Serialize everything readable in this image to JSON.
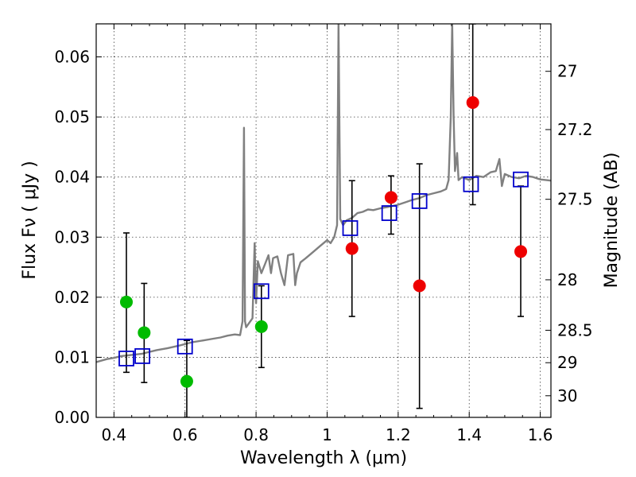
{
  "chart_data": {
    "type": "scatter",
    "xlabel": "Wavelength  λ (μm)",
    "ylabel": "Flux  Fν  ( μJy )",
    "ylabel_right": "Magnitude (AB)",
    "xlim": [
      0.35,
      1.63
    ],
    "ylim": [
      0.0,
      0.0655
    ],
    "x_ticks": [
      0.4,
      0.6,
      0.8,
      1.0,
      1.2,
      1.4,
      1.6
    ],
    "x_tick_labels": [
      "0.4",
      "0.6",
      "0.8",
      "1",
      "1.2",
      "1.4",
      "1.6"
    ],
    "y_ticks": [
      0.0,
      0.01,
      0.02,
      0.03,
      0.04,
      0.05,
      0.06
    ],
    "y_tick_labels": [
      "0.00",
      "0.01",
      "0.02",
      "0.03",
      "0.04",
      "0.05",
      "0.06"
    ],
    "right_ticks": [
      {
        "label": "27",
        "flux": 0.0576
      },
      {
        "label": "27.2",
        "flux": 0.0479
      },
      {
        "label": "27.5",
        "flux": 0.0363
      },
      {
        "label": "28",
        "flux": 0.0229
      },
      {
        "label": "28.5",
        "flux": 0.0145
      },
      {
        "label": "29",
        "flux": 0.0091
      },
      {
        "label": "30",
        "flux": 0.0036
      }
    ],
    "grid": true,
    "colors": {
      "sed": "#808080",
      "green": "#00bb00",
      "red": "#ee0000",
      "model": "#0000cc",
      "errorbar": "#000000"
    },
    "series": [
      {
        "name": "model SED",
        "style": "line",
        "color": "#808080",
        "points": [
          [
            0.35,
            0.0092
          ],
          [
            0.38,
            0.0097
          ],
          [
            0.4,
            0.0099
          ],
          [
            0.42,
            0.0102
          ],
          [
            0.45,
            0.0104
          ],
          [
            0.48,
            0.0106
          ],
          [
            0.5,
            0.0109
          ],
          [
            0.52,
            0.0112
          ],
          [
            0.55,
            0.0115
          ],
          [
            0.58,
            0.0119
          ],
          [
            0.6,
            0.0122
          ],
          [
            0.62,
            0.0125
          ],
          [
            0.65,
            0.0128
          ],
          [
            0.68,
            0.0131
          ],
          [
            0.7,
            0.0133
          ],
          [
            0.72,
            0.0136
          ],
          [
            0.74,
            0.0138
          ],
          [
            0.755,
            0.0137
          ],
          [
            0.762,
            0.016
          ],
          [
            0.766,
            0.0482
          ],
          [
            0.769,
            0.016
          ],
          [
            0.772,
            0.015
          ],
          [
            0.79,
            0.0165
          ],
          [
            0.796,
            0.029
          ],
          [
            0.8,
            0.019
          ],
          [
            0.805,
            0.026
          ],
          [
            0.815,
            0.024
          ],
          [
            0.825,
            0.0255
          ],
          [
            0.835,
            0.027
          ],
          [
            0.842,
            0.024
          ],
          [
            0.848,
            0.0265
          ],
          [
            0.86,
            0.0268
          ],
          [
            0.87,
            0.024
          ],
          [
            0.88,
            0.022
          ],
          [
            0.89,
            0.027
          ],
          [
            0.905,
            0.0272
          ],
          [
            0.91,
            0.022
          ],
          [
            0.915,
            0.024
          ],
          [
            0.925,
            0.0258
          ],
          [
            0.94,
            0.0265
          ],
          [
            0.96,
            0.0275
          ],
          [
            0.98,
            0.0285
          ],
          [
            1.0,
            0.0295
          ],
          [
            1.01,
            0.029
          ],
          [
            1.02,
            0.03
          ],
          [
            1.028,
            0.032
          ],
          [
            1.032,
            0.0655
          ],
          [
            1.037,
            0.033
          ],
          [
            1.045,
            0.032
          ],
          [
            1.055,
            0.0328
          ],
          [
            1.07,
            0.0332
          ],
          [
            1.085,
            0.034
          ],
          [
            1.1,
            0.0342
          ],
          [
            1.115,
            0.0346
          ],
          [
            1.13,
            0.0345
          ],
          [
            1.15,
            0.0348
          ],
          [
            1.17,
            0.035
          ],
          [
            1.185,
            0.0352
          ],
          [
            1.2,
            0.0354
          ],
          [
            1.22,
            0.0358
          ],
          [
            1.24,
            0.0362
          ],
          [
            1.26,
            0.0365
          ],
          [
            1.28,
            0.037
          ],
          [
            1.3,
            0.0373
          ],
          [
            1.32,
            0.0376
          ],
          [
            1.335,
            0.038
          ],
          [
            1.342,
            0.0395
          ],
          [
            1.348,
            0.05
          ],
          [
            1.352,
            0.0655
          ],
          [
            1.356,
            0.05
          ],
          [
            1.36,
            0.041
          ],
          [
            1.366,
            0.044
          ],
          [
            1.37,
            0.0395
          ],
          [
            1.38,
            0.04
          ],
          [
            1.4,
            0.0395
          ],
          [
            1.42,
            0.0402
          ],
          [
            1.44,
            0.04
          ],
          [
            1.46,
            0.0408
          ],
          [
            1.475,
            0.041
          ],
          [
            1.485,
            0.043
          ],
          [
            1.492,
            0.0385
          ],
          [
            1.5,
            0.0405
          ],
          [
            1.52,
            0.04
          ],
          [
            1.54,
            0.0398
          ],
          [
            1.56,
            0.0402
          ],
          [
            1.58,
            0.04
          ],
          [
            1.6,
            0.0396
          ],
          [
            1.63,
            0.0394
          ]
        ]
      },
      {
        "name": "green detections",
        "style": "circle",
        "color": "#00bb00",
        "points": [
          {
            "x": 0.435,
            "y": 0.0192
          },
          {
            "x": 0.485,
            "y": 0.0141
          },
          {
            "x": 0.605,
            "y": 0.006
          },
          {
            "x": 0.815,
            "y": 0.0151
          }
        ]
      },
      {
        "name": "red detections",
        "style": "circle",
        "color": "#ee0000",
        "points": [
          {
            "x": 1.07,
            "y": 0.0281
          },
          {
            "x": 1.18,
            "y": 0.0366
          },
          {
            "x": 1.26,
            "y": 0.0219
          },
          {
            "x": 1.41,
            "y": 0.0524
          },
          {
            "x": 1.545,
            "y": 0.0276
          }
        ]
      },
      {
        "name": "model photometry",
        "style": "open-square",
        "color": "#0000cc",
        "points": [
          {
            "x": 0.435,
            "y": 0.0098
          },
          {
            "x": 0.48,
            "y": 0.0102
          },
          {
            "x": 0.6,
            "y": 0.0118
          },
          {
            "x": 0.815,
            "y": 0.021
          },
          {
            "x": 1.065,
            "y": 0.0315
          },
          {
            "x": 1.175,
            "y": 0.034
          },
          {
            "x": 1.26,
            "y": 0.036
          },
          {
            "x": 1.405,
            "y": 0.0388
          },
          {
            "x": 1.545,
            "y": 0.0396
          }
        ]
      }
    ],
    "error_bars": [
      {
        "x": 0.435,
        "low": 0.0075,
        "high": 0.0307
      },
      {
        "x": 0.485,
        "low": 0.0058,
        "high": 0.0223
      },
      {
        "x": 0.605,
        "low": 0.0,
        "high": 0.0128
      },
      {
        "x": 0.815,
        "low": 0.0083,
        "high": 0.0219
      },
      {
        "x": 1.07,
        "low": 0.0168,
        "high": 0.0394
      },
      {
        "x": 1.18,
        "low": 0.0305,
        "high": 0.0402
      },
      {
        "x": 1.26,
        "low": 0.0015,
        "high": 0.0422
      },
      {
        "x": 1.41,
        "low": 0.0354,
        "high": 0.0655
      },
      {
        "x": 1.545,
        "low": 0.0168,
        "high": 0.0385
      }
    ]
  }
}
